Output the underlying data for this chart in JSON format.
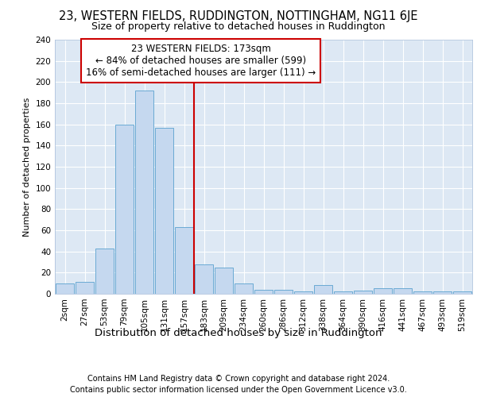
{
  "title_line1": "23, WESTERN FIELDS, RUDDINGTON, NOTTINGHAM, NG11 6JE",
  "title_line2": "Size of property relative to detached houses in Ruddington",
  "xlabel": "Distribution of detached houses by size in Ruddington",
  "ylabel": "Number of detached properties",
  "footnote1": "Contains HM Land Registry data © Crown copyright and database right 2024.",
  "footnote2": "Contains public sector information licensed under the Open Government Licence v3.0.",
  "bar_labels": [
    "2sqm",
    "27sqm",
    "53sqm",
    "79sqm",
    "105sqm",
    "131sqm",
    "157sqm",
    "183sqm",
    "209sqm",
    "234sqm",
    "260sqm",
    "286sqm",
    "312sqm",
    "338sqm",
    "364sqm",
    "390sqm",
    "416sqm",
    "441sqm",
    "467sqm",
    "493sqm",
    "519sqm"
  ],
  "bar_values": [
    10,
    11,
    43,
    160,
    192,
    157,
    63,
    28,
    25,
    10,
    4,
    4,
    2,
    8,
    2,
    3,
    5,
    5,
    2,
    2,
    2
  ],
  "bar_color": "#c5d8ef",
  "bar_edge_color": "#6aaad4",
  "vline_index": 7,
  "vline_color": "#cc0000",
  "annotation_text": "23 WESTERN FIELDS: 173sqm\n← 84% of detached houses are smaller (599)\n16% of semi-detached houses are larger (111) →",
  "annotation_box_color": "#ffffff",
  "annotation_box_edge": "#cc0000",
  "ylim": [
    0,
    240
  ],
  "yticks": [
    0,
    20,
    40,
    60,
    80,
    100,
    120,
    140,
    160,
    180,
    200,
    220,
    240
  ],
  "background_color": "#dde8f4",
  "grid_color": "#ffffff",
  "title_fontsize": 10.5,
  "subtitle_fontsize": 9,
  "ylabel_fontsize": 8,
  "xlabel_fontsize": 9.5,
  "tick_fontsize": 7.5,
  "annotation_fontsize": 8.5,
  "footnote_fontsize": 7
}
